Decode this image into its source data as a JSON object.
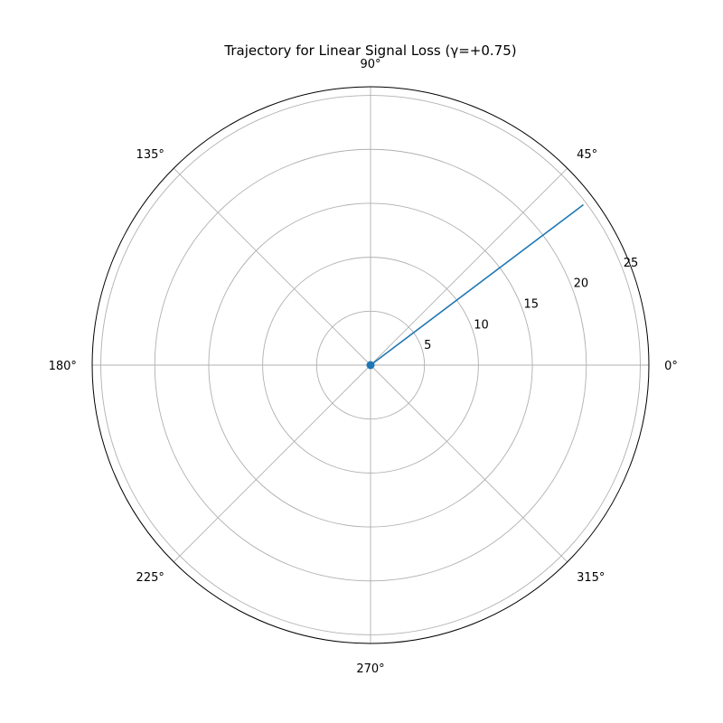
{
  "chart_data": {
    "type": "line",
    "projection": "polar",
    "title": "Trajectory for Linear Signal Loss (γ=+0.75)",
    "theta_unit": "degrees",
    "theta_ticks": [
      0,
      45,
      90,
      135,
      180,
      225,
      270,
      315
    ],
    "theta_tick_labels": [
      "0°",
      "45°",
      "90°",
      "135°",
      "180°",
      "225°",
      "270°",
      "315°"
    ],
    "r_lim": [
      0,
      25.8
    ],
    "r_ticks": [
      5,
      10,
      15,
      20,
      25
    ],
    "r_tick_labels": [
      "5",
      "10",
      "15",
      "20",
      "25"
    ],
    "r_label_angle_deg": 22.5,
    "grid": true,
    "series": [
      {
        "color": "#1f77b4",
        "points": [
          {
            "theta": 37,
            "r": 0
          },
          {
            "theta": 37,
            "r": 24.7
          }
        ],
        "marker_at_start": true
      }
    ]
  }
}
